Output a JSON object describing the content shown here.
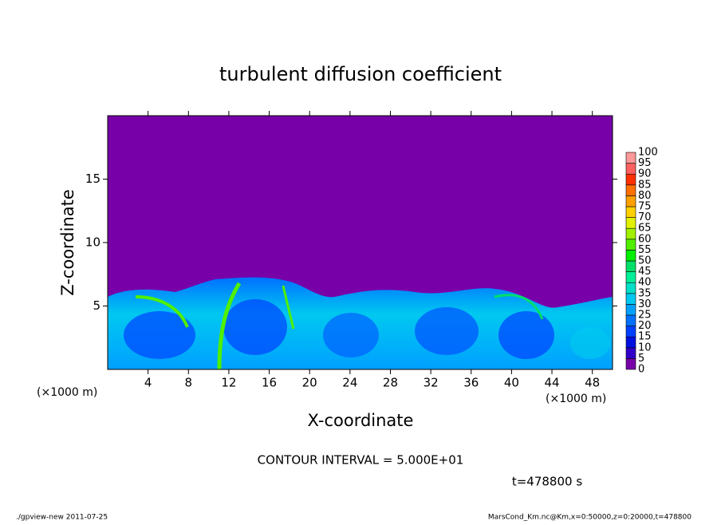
{
  "chart_data": {
    "type": "heatmap",
    "title": "turbulent diffusion coefficient",
    "x_label": "X-coordinate",
    "y_label": "Z-coordinate",
    "x_unit": "(×1000 m)",
    "y_unit": "(×1000 m)",
    "xlim": [
      0,
      50
    ],
    "xticks": [
      4,
      8,
      12,
      16,
      20,
      24,
      28,
      32,
      36,
      40,
      44,
      48
    ],
    "ylim": [
      0,
      20
    ],
    "yticks": [
      5,
      10,
      15
    ],
    "levels": [
      0,
      5,
      10,
      15,
      20,
      25,
      30,
      35,
      40,
      45,
      50,
      55,
      60,
      65,
      70,
      75,
      80,
      85,
      90,
      95,
      100
    ],
    "level_colors": [
      "#7800a8",
      "#3000c8",
      "#0010e0",
      "#0040ff",
      "#0070ff",
      "#00a0ff",
      "#00c8f0",
      "#00e0c8",
      "#00f098",
      "#00e068",
      "#00f000",
      "#50f000",
      "#a0f000",
      "#e0f000",
      "#ffd000",
      "#ffa000",
      "#ff7000",
      "#ff3000",
      "#ff6060",
      "#ff9898"
    ],
    "contour_interval": "CONTOUR INTERVAL = 5.000E+01",
    "time_label": "t=478800 s",
    "footer_left": "./gpview-new  2011-07-25",
    "footer_right": "MarsCond_Km.nc@Km,x=0:50000,z=0:20000,t=478800"
  }
}
